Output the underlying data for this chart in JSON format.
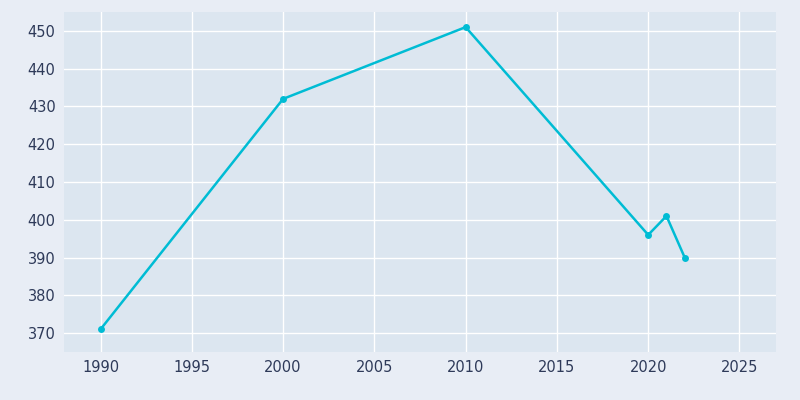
{
  "years": [
    1990,
    2000,
    2010,
    2020,
    2021,
    2022
  ],
  "population": [
    371,
    432,
    451,
    396,
    401,
    390
  ],
  "line_color": "#00BCD4",
  "marker_color": "#00BCD4",
  "bg_outer_color": "#E8EDF5",
  "plot_bg_color": "#DCE6F0",
  "grid_color": "#FFFFFF",
  "text_color": "#2E3A59",
  "xlim": [
    1988,
    2027
  ],
  "ylim": [
    365,
    455
  ],
  "xticks": [
    1990,
    1995,
    2000,
    2005,
    2010,
    2015,
    2020,
    2025
  ],
  "yticks": [
    370,
    380,
    390,
    400,
    410,
    420,
    430,
    440,
    450
  ],
  "linewidth": 1.8,
  "markersize": 5,
  "figsize": [
    8.0,
    4.0
  ],
  "dpi": 100
}
